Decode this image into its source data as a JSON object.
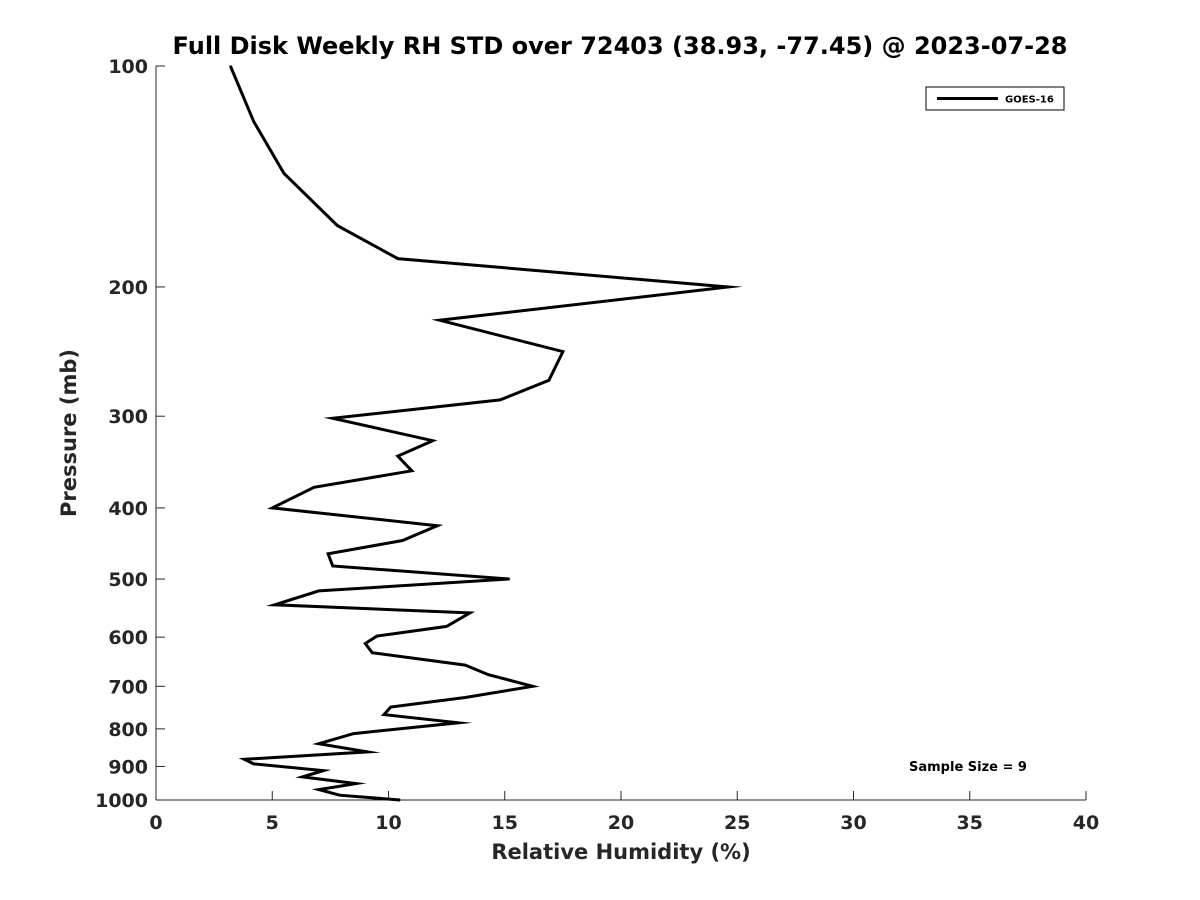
{
  "chart_data": {
    "type": "line",
    "title": "Full Disk Weekly RH STD over 72403 (38.93, -77.45) @ 2023-07-28",
    "xlabel": "Relative Humidity (%)",
    "ylabel": "Pressure (mb)",
    "xlim": [
      0,
      40
    ],
    "ylim": [
      100,
      1000
    ],
    "y_scale": "log",
    "y_reversed": true,
    "x_ticks": [
      0,
      5,
      10,
      15,
      20,
      25,
      30,
      35,
      40
    ],
    "x_tick_labels": [
      "0",
      "5",
      "10",
      "15",
      "20",
      "25",
      "30",
      "35",
      "40"
    ],
    "y_ticks": [
      100,
      200,
      300,
      400,
      500,
      600,
      700,
      800,
      900,
      1000
    ],
    "y_tick_labels": [
      "100",
      "200",
      "300",
      "400",
      "500",
      "600",
      "700",
      "800",
      "900",
      "1000"
    ],
    "grid": false,
    "legend_position": "top-right",
    "line_color": "#000000",
    "annotation": "Sample Size = 9",
    "series": [
      {
        "name": "GOES-16",
        "x": [
          3.2,
          4.2,
          5.5,
          7.8,
          10.4,
          24.6,
          12.2,
          17.5,
          16.9,
          14.8,
          7.6,
          11.9,
          10.4,
          11.0,
          6.8,
          5.0,
          12.1,
          10.6,
          7.4,
          7.6,
          15.2,
          7.0,
          5.1,
          13.5,
          12.5,
          9.5,
          9.0,
          9.3,
          13.3,
          14.3,
          16.2,
          13.3,
          10.1,
          9.8,
          13.0,
          8.5,
          7.0,
          9.1,
          3.8,
          4.2,
          7.2,
          6.3,
          8.6,
          7.0,
          7.9,
          10.5
        ],
        "y": [
          100,
          119,
          140,
          165,
          183,
          200,
          222,
          245,
          268,
          285,
          302,
          324,
          340,
          356,
          375,
          400,
          423,
          443,
          462,
          480,
          500,
          519,
          542,
          556,
          580,
          598,
          612,
          630,
          655,
          675,
          700,
          725,
          747,
          765,
          785,
          812,
          838,
          860,
          880,
          893,
          912,
          930,
          950,
          968,
          985,
          1000
        ]
      }
    ]
  }
}
